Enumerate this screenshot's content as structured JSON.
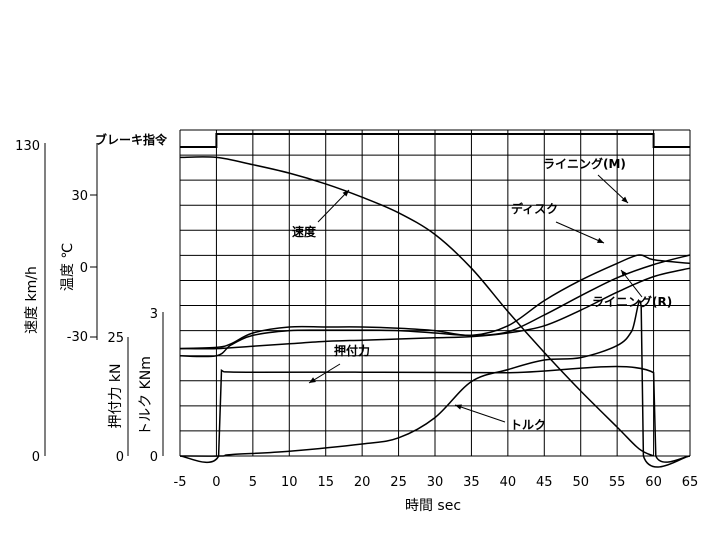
{
  "labels": {
    "brake_command": "ブレーキ指令",
    "speed": "速度",
    "disc": "ディスク",
    "lining_m": "ライニング(M)",
    "lining_r": "ライニング(R)",
    "press_force": "押付力",
    "torque": "トルク"
  },
  "axes": {
    "x_title": "時間  sec",
    "speed_title": "速度  km/h",
    "temp_title": "温度  ℃",
    "force_title": "押付力  kN",
    "torque_title": "トルク  KNm"
  },
  "chart_data": {
    "type": "line",
    "x_ticks": [
      "-5",
      "0",
      "5",
      "10",
      "15",
      "20",
      "25",
      "30",
      "35",
      "40",
      "45",
      "50",
      "55",
      "60",
      "65"
    ],
    "xlim": [
      -5,
      65
    ],
    "speed_axis": {
      "label": "速度 km/h",
      "ticks": [
        "130",
        "0"
      ],
      "ylim": [
        0,
        130
      ]
    },
    "temp_axis": {
      "label": "温度 ℃",
      "ticks": [
        "30",
        "0",
        "-30"
      ]
    },
    "force_axis": {
      "label": "押付力 kN",
      "ticks": [
        "25",
        "0"
      ],
      "ylim": [
        0,
        25
      ]
    },
    "torque_axis": {
      "label": "トルク KNm",
      "ticks": [
        "3",
        "0"
      ],
      "ylim": [
        0,
        3
      ]
    },
    "series": [
      {
        "name": "ブレーキ指令",
        "axis": "command",
        "points": [
          [
            -5,
            0
          ],
          [
            0,
            0
          ],
          [
            0,
            1
          ],
          [
            60,
            1
          ],
          [
            60,
            0
          ],
          [
            65,
            0
          ]
        ]
      },
      {
        "name": "速度",
        "axis": "speed",
        "points": [
          [
            -5,
            124
          ],
          [
            0,
            124
          ],
          [
            5,
            121
          ],
          [
            10,
            117.5
          ],
          [
            15,
            113
          ],
          [
            20,
            107.5
          ],
          [
            25,
            101
          ],
          [
            30,
            92
          ],
          [
            35,
            78
          ],
          [
            40,
            60
          ],
          [
            45,
            43
          ],
          [
            50,
            27
          ],
          [
            55,
            12
          ],
          [
            58,
            3
          ],
          [
            60,
            0
          ]
        ]
      },
      {
        "name": "ディスク",
        "axis": "temp",
        "points": [
          [
            -5,
            -37
          ],
          [
            0,
            -37
          ],
          [
            2,
            -32.5
          ],
          [
            5,
            -28.5
          ],
          [
            10,
            -26.5
          ],
          [
            15,
            -26.3
          ],
          [
            20,
            -26.3
          ],
          [
            25,
            -26.5
          ],
          [
            30,
            -27.5
          ],
          [
            35,
            -28.5
          ],
          [
            40,
            -27
          ],
          [
            45,
            -20
          ],
          [
            50,
            -12
          ],
          [
            55,
            -4.5
          ],
          [
            60,
            1
          ],
          [
            65,
            5
          ]
        ]
      },
      {
        "name": "ライニング(M)",
        "axis": "temp",
        "points": [
          [
            -5,
            -34
          ],
          [
            0,
            -33.5
          ],
          [
            2,
            -32
          ],
          [
            5,
            -27.5
          ],
          [
            10,
            -25
          ],
          [
            15,
            -25
          ],
          [
            20,
            -25
          ],
          [
            25,
            -25.5
          ],
          [
            30,
            -26.5
          ],
          [
            35,
            -28.5
          ],
          [
            40,
            -24.5
          ],
          [
            45,
            -14
          ],
          [
            50,
            -5.5
          ],
          [
            55,
            1.5
          ],
          [
            58,
            5
          ],
          [
            60,
            3
          ],
          [
            65,
            1.5
          ]
        ]
      },
      {
        "name": "ライニング(R)",
        "axis": "temp",
        "points": [
          [
            -5,
            -34
          ],
          [
            0,
            -34
          ],
          [
            5,
            -33
          ],
          [
            10,
            -32
          ],
          [
            15,
            -31
          ],
          [
            20,
            -30.5
          ],
          [
            25,
            -30
          ],
          [
            30,
            -29.5
          ],
          [
            35,
            -29
          ],
          [
            40,
            -27.5
          ],
          [
            45,
            -24.5
          ],
          [
            50,
            -18
          ],
          [
            55,
            -10.5
          ],
          [
            60,
            -4
          ],
          [
            65,
            -0.5
          ]
        ]
      },
      {
        "name": "押付力",
        "axis": "force",
        "points": [
          [
            -5,
            0
          ],
          [
            0.3,
            0
          ],
          [
            0.7,
            18
          ],
          [
            1,
            17.7
          ],
          [
            5,
            17.6
          ],
          [
            20,
            17.6
          ],
          [
            40,
            17.5
          ],
          [
            60,
            17.5
          ],
          [
            60.3,
            0
          ],
          [
            65,
            0
          ]
        ]
      },
      {
        "name": "トルク",
        "axis": "torque",
        "points": [
          [
            -5,
            0
          ],
          [
            0.6,
            0
          ],
          [
            2,
            0.03
          ],
          [
            10,
            0.1
          ],
          [
            20,
            0.25
          ],
          [
            25,
            0.38
          ],
          [
            30,
            0.8
          ],
          [
            35,
            1.55
          ],
          [
            40,
            1.8
          ],
          [
            45,
            2.0
          ],
          [
            50,
            2.05
          ],
          [
            55,
            2.3
          ],
          [
            57,
            2.6
          ],
          [
            58.3,
            3.1
          ],
          [
            58.6,
            0
          ],
          [
            65,
            0
          ]
        ]
      }
    ]
  }
}
